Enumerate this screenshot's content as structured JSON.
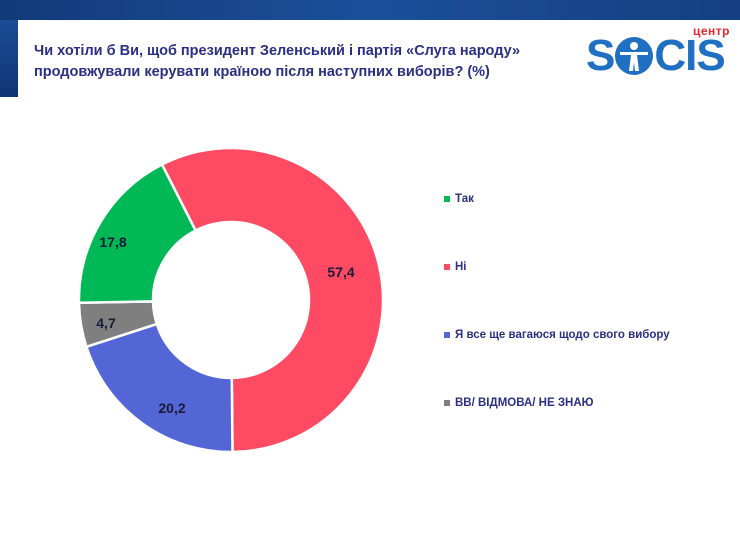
{
  "header": {
    "title_line1": "Чи хотіли б Ви, щоб президент Зеленський і партія «Слуга народу»",
    "title_line2": "продовжували керувати країною після наступних виборів? (%)",
    "logo_small": "центр",
    "logo_word_left": "S",
    "logo_word_right": "CIS"
  },
  "colors": {
    "band": "#1c4f9a",
    "title": "#2b2f84",
    "logo_blue": "#1f6fc2",
    "logo_red": "#e8262e"
  },
  "chart_data": {
    "type": "pie",
    "subtype": "donut",
    "title": "Чи хотіли б Ви, щоб президент Зеленський і партія «Слуга народу» продовжували керувати країною після наступних виборів? (%)",
    "categories": [
      "Так",
      "Ні",
      "Я все ще вагаюся щодо свого вибору",
      "ВВ/ ВІДМОВА/ НЕ ЗНАЮ"
    ],
    "values": [
      17.8,
      57.4,
      20.2,
      4.7
    ],
    "value_labels": [
      "17,8",
      "57,4",
      "20,2",
      "4,7"
    ],
    "colors": [
      "#00b956",
      "#ff4a64",
      "#5466d6",
      "#7f7f7f"
    ],
    "unit": "%",
    "legend_position": "right",
    "start_angle_deg": -27,
    "draw_order": [
      "Ні",
      "Я все ще вагаюся щодо свого вибору",
      "ВВ/ ВІДМОВА/ НЕ ЗНАЮ",
      "Так"
    ]
  },
  "legend": {
    "items": [
      {
        "label": "Так",
        "color": "#00b956"
      },
      {
        "label": "Ні",
        "color": "#ff4a64"
      },
      {
        "label": "Я все ще вагаюся щодо свого вибору",
        "color": "#5466d6"
      },
      {
        "label": "ВВ/ ВІДМОВА/ НЕ ЗНАЮ",
        "color": "#7f7f7f"
      }
    ]
  }
}
